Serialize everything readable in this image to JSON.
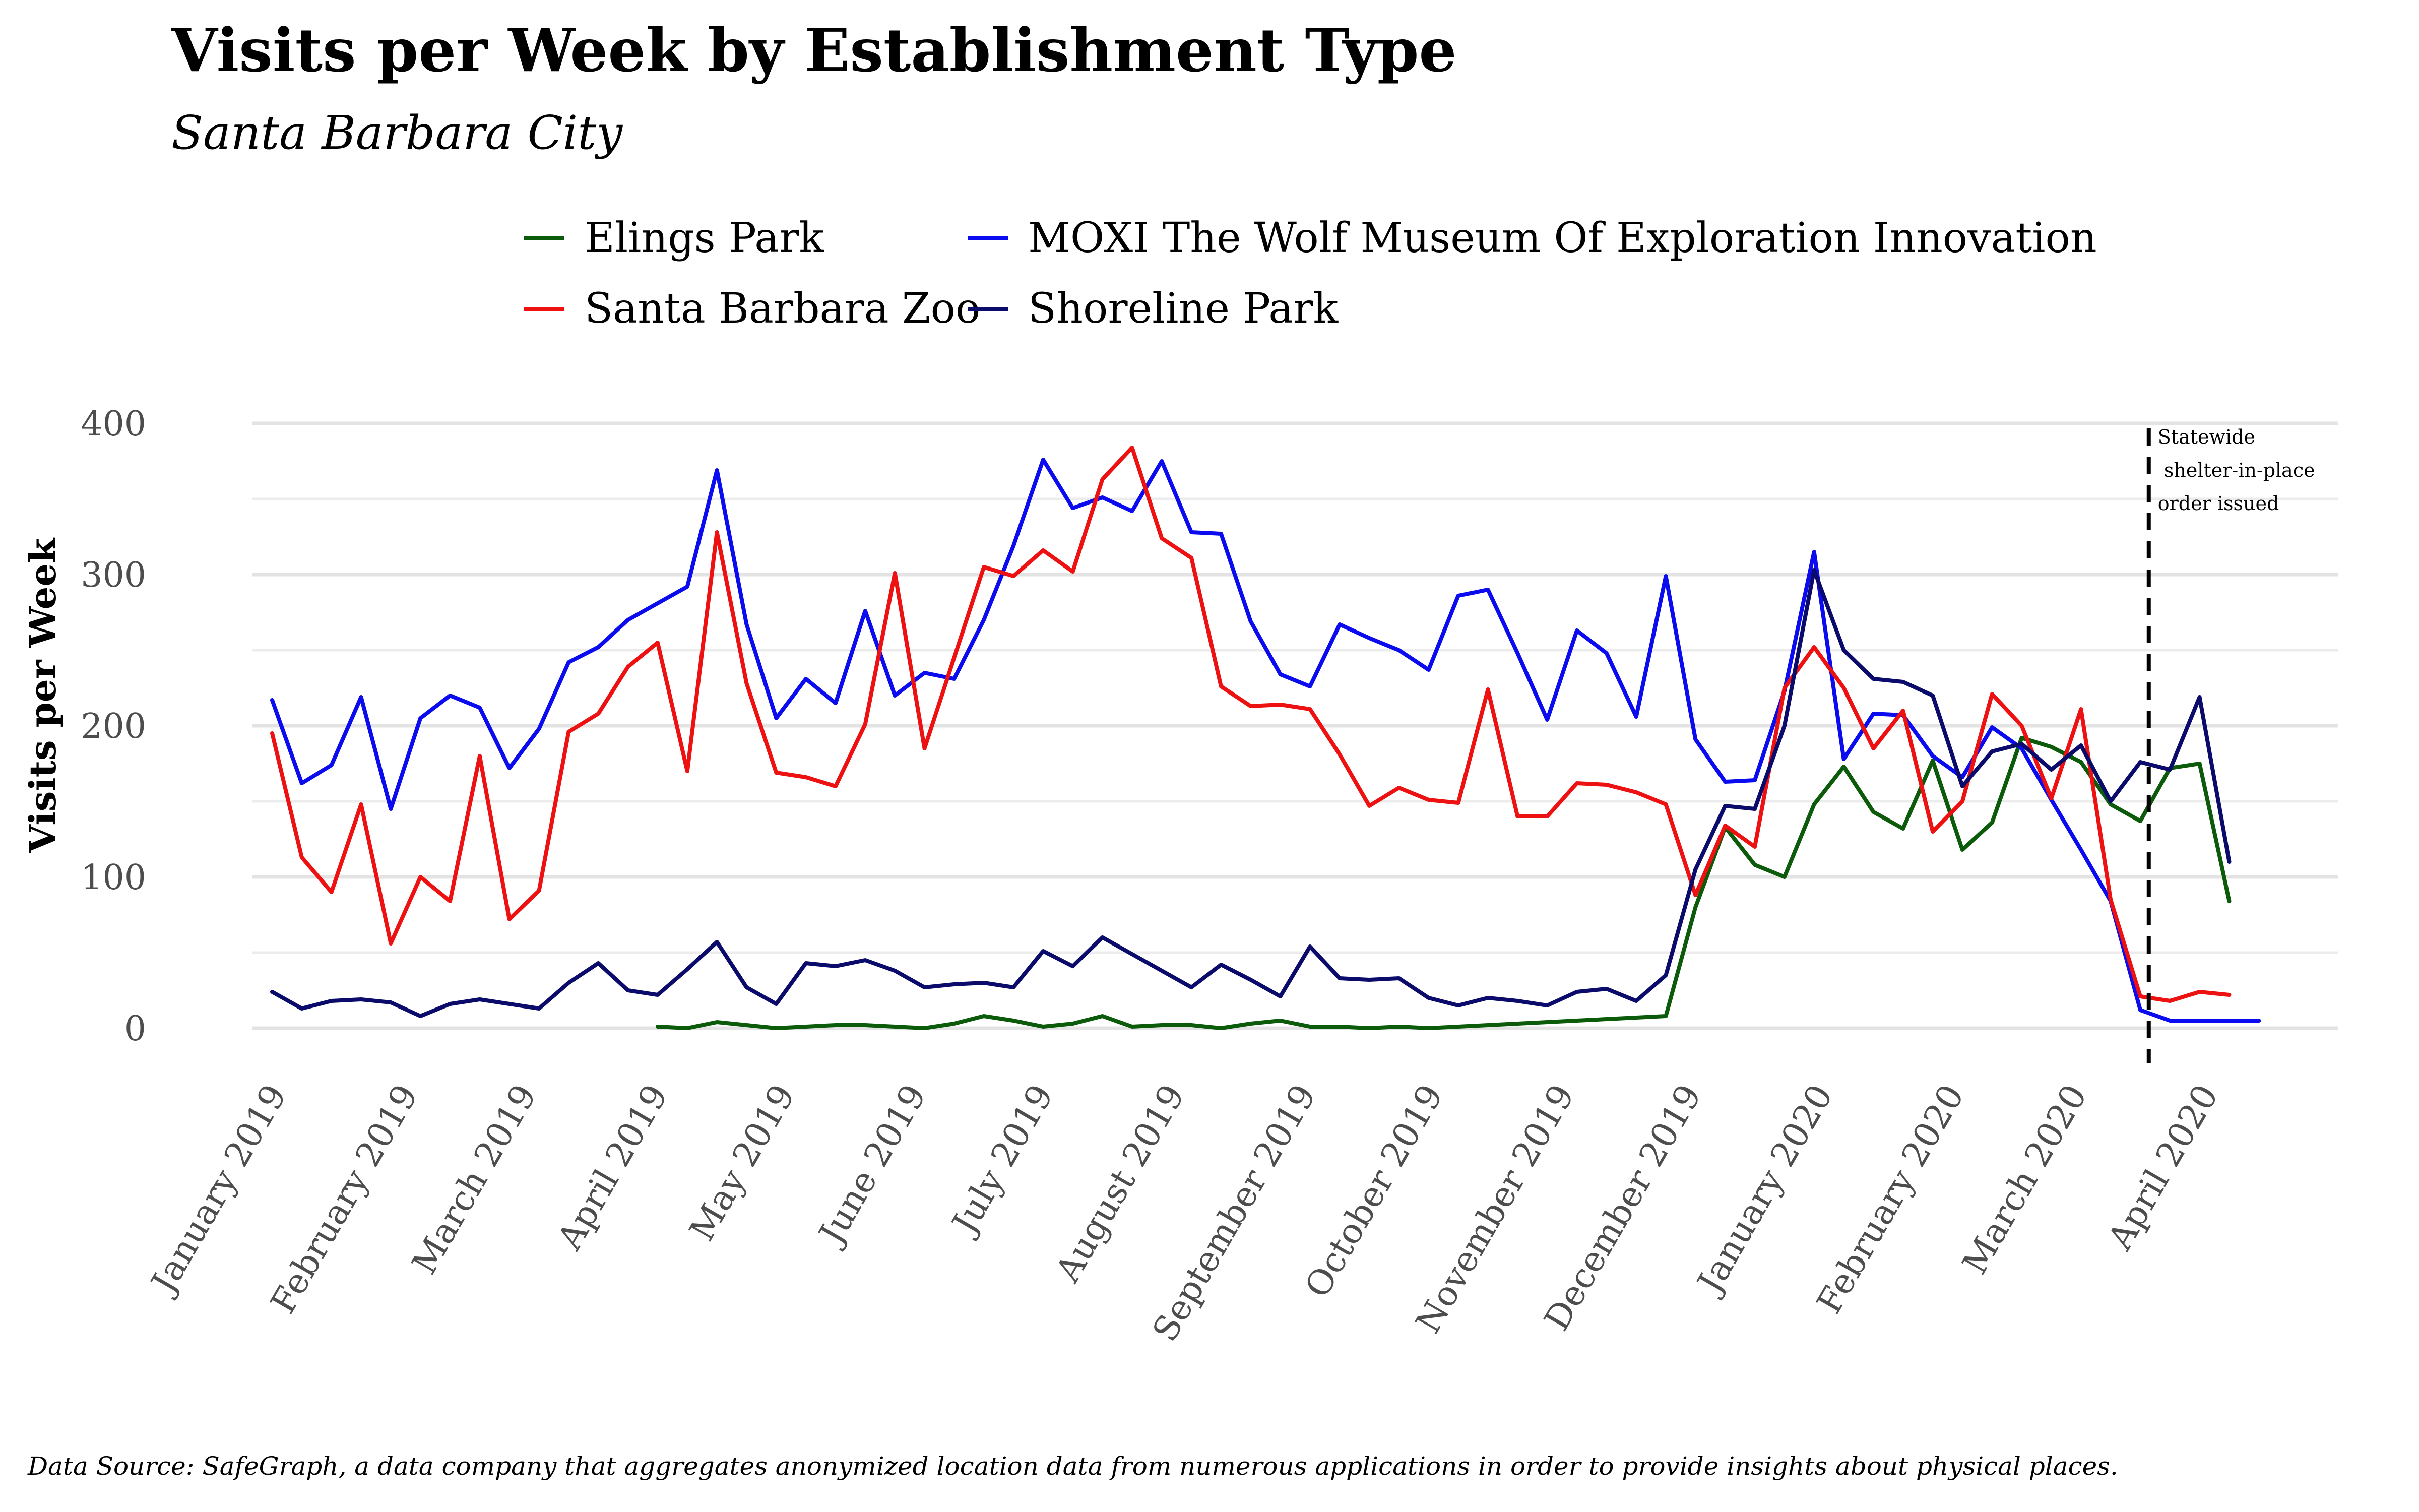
{
  "chart_data": {
    "type": "line",
    "title": "Visits per Week by Establishment Type",
    "subtitle": "Santa Barbara City",
    "ylabel": "Visits per Week",
    "xlabel": "",
    "ylim": [
      0,
      400
    ],
    "yticks": [
      0,
      100,
      200,
      300,
      400
    ],
    "grid": true,
    "legend_position": "top",
    "x": [
      "2019-01-01",
      "2019-01-08",
      "2019-01-15",
      "2019-01-22",
      "2019-01-29",
      "2019-02-05",
      "2019-02-12",
      "2019-02-19",
      "2019-02-26",
      "2019-03-05",
      "2019-03-12",
      "2019-03-19",
      "2019-03-26",
      "2019-04-02",
      "2019-04-09",
      "2019-04-16",
      "2019-04-23",
      "2019-04-30",
      "2019-05-07",
      "2019-05-14",
      "2019-05-21",
      "2019-05-28",
      "2019-06-04",
      "2019-06-11",
      "2019-06-18",
      "2019-06-25",
      "2019-07-02",
      "2019-07-09",
      "2019-07-16",
      "2019-07-23",
      "2019-07-30",
      "2019-08-06",
      "2019-08-13",
      "2019-08-20",
      "2019-08-27",
      "2019-09-03",
      "2019-09-10",
      "2019-09-17",
      "2019-09-24",
      "2019-10-01",
      "2019-10-08",
      "2019-10-15",
      "2019-10-22",
      "2019-10-29",
      "2019-11-05",
      "2019-11-12",
      "2019-11-19",
      "2019-11-26",
      "2019-12-03",
      "2019-12-10",
      "2019-12-17",
      "2019-12-24",
      "2019-12-31",
      "2020-01-07",
      "2020-01-14",
      "2020-01-21",
      "2020-01-28",
      "2020-02-04",
      "2020-02-11",
      "2020-02-18",
      "2020-02-25",
      "2020-03-03",
      "2020-03-10",
      "2020-03-17",
      "2020-03-24",
      "2020-03-31",
      "2020-04-07",
      "2020-04-14",
      "2020-04-21",
      "2020-04-28"
    ],
    "x_tick_labels": [
      {
        "date": "2019-01-01",
        "label": "January 2019"
      },
      {
        "date": "2019-02-01",
        "label": "February 2019"
      },
      {
        "date": "2019-03-01",
        "label": "March 2019"
      },
      {
        "date": "2019-04-01",
        "label": "April 2019"
      },
      {
        "date": "2019-05-01",
        "label": "May 2019"
      },
      {
        "date": "2019-06-01",
        "label": "June 2019"
      },
      {
        "date": "2019-07-01",
        "label": "July 2019"
      },
      {
        "date": "2019-08-01",
        "label": "August 2019"
      },
      {
        "date": "2019-09-01",
        "label": "September 2019"
      },
      {
        "date": "2019-10-01",
        "label": "October 2019"
      },
      {
        "date": "2019-11-01",
        "label": "November 2019"
      },
      {
        "date": "2019-12-01",
        "label": "December 2019"
      },
      {
        "date": "2020-01-01",
        "label": "January 2020"
      },
      {
        "date": "2020-02-01",
        "label": "February 2020"
      },
      {
        "date": "2020-03-01",
        "label": "March 2020"
      },
      {
        "date": "2020-04-01",
        "label": "April 2020"
      }
    ],
    "series": [
      {
        "name": "Elings Park",
        "color": "#0b5b0b",
        "values": [
          null,
          null,
          null,
          null,
          null,
          null,
          null,
          null,
          null,
          null,
          null,
          null,
          null,
          1,
          0,
          4,
          2,
          0,
          1,
          2,
          2,
          1,
          0,
          3,
          8,
          5,
          1,
          3,
          8,
          1,
          2,
          2,
          0,
          3,
          5,
          1,
          1,
          0,
          1,
          0,
          1,
          2,
          3,
          4,
          5,
          6,
          7,
          8,
          80,
          133,
          108,
          100,
          148,
          173,
          143,
          132,
          177,
          118,
          136,
          192,
          186,
          176,
          148,
          137,
          172,
          175,
          84,
          null,
          null,
          null
        ]
      },
      {
        "name": "MOXI The Wolf Museum Of Exploration Innovation",
        "color": "#0b0bf0",
        "values": [
          217,
          162,
          174,
          219,
          145,
          205,
          220,
          212,
          172,
          198,
          242,
          252,
          270,
          281,
          292,
          369,
          267,
          205,
          231,
          215,
          276,
          220,
          235,
          231,
          270,
          319,
          376,
          344,
          351,
          342,
          375,
          328,
          327,
          269,
          234,
          226,
          267,
          258,
          250,
          237,
          286,
          290,
          248,
          204,
          263,
          248,
          206,
          299,
          191,
          163,
          164,
          223,
          315,
          178,
          208,
          207,
          180,
          166,
          199,
          185,
          151,
          118,
          84,
          12,
          5,
          5,
          5,
          5,
          null,
          null
        ]
      },
      {
        "name": "Santa Barbara Zoo",
        "color": "#ee1111",
        "values": [
          195,
          113,
          90,
          148,
          56,
          100,
          84,
          180,
          72,
          91,
          196,
          208,
          239,
          255,
          170,
          328,
          228,
          169,
          166,
          160,
          201,
          301,
          185,
          245,
          305,
          299,
          316,
          302,
          363,
          384,
          324,
          311,
          226,
          213,
          214,
          211,
          181,
          147,
          159,
          151,
          149,
          224,
          140,
          140,
          162,
          161,
          156,
          148,
          88,
          134,
          120,
          225,
          252,
          225,
          185,
          210,
          130,
          150,
          221,
          200,
          152,
          211,
          85,
          21,
          18,
          24,
          22,
          null,
          null,
          null
        ]
      },
      {
        "name": "Shoreline Park",
        "color": "#0b0b6b",
        "values": [
          24,
          13,
          18,
          19,
          17,
          8,
          16,
          19,
          16,
          13,
          30,
          43,
          25,
          22,
          39,
          57,
          27,
          16,
          43,
          41,
          45,
          38,
          27,
          29,
          30,
          27,
          51,
          41,
          60,
          49,
          38,
          27,
          42,
          32,
          21,
          54,
          33,
          32,
          33,
          20,
          15,
          20,
          18,
          15,
          24,
          26,
          18,
          35,
          105,
          147,
          145,
          200,
          303,
          250,
          231,
          229,
          220,
          160,
          183,
          188,
          171,
          187,
          150,
          176,
          171,
          219,
          110,
          null,
          null,
          null
        ]
      }
    ],
    "annotation": {
      "date": "2020-03-19",
      "line_style": "dashed",
      "text": "Statewide\n shelter-in-place\norder issued"
    }
  },
  "legend": {
    "items": [
      {
        "label": "Elings Park",
        "color": "#0b5b0b"
      },
      {
        "label": "Santa Barbara Zoo",
        "color": "#ee1111"
      },
      {
        "label": "MOXI The Wolf Museum Of Exploration Innovation",
        "color": "#0b0bf0"
      },
      {
        "label": "Shoreline Park",
        "color": "#0b0b6b"
      }
    ]
  },
  "caption": "Data Source: SafeGraph, a data company that aggregates anonymized location data from numerous applications in order to provide insights about physical places."
}
